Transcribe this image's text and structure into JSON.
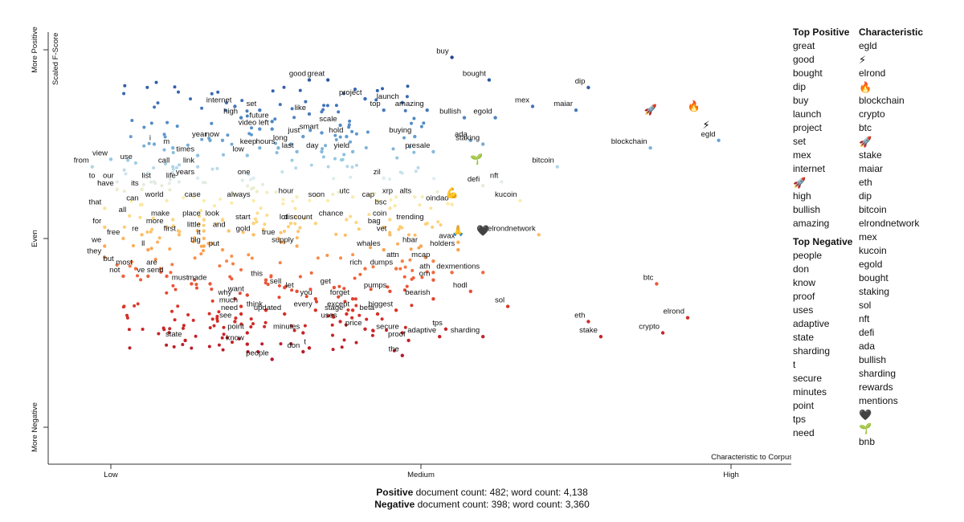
{
  "chart_data": {
    "type": "scatter",
    "xlabel": "Characteristic to Corpus",
    "ylabel": "Scaled F-Score",
    "x_ticks": [
      "Low",
      "Medium",
      "High"
    ],
    "y_ticks": [
      "More Negative",
      "Even",
      "More Positive"
    ],
    "xlim": [
      0,
      1
    ],
    "ylim": [
      0,
      1
    ],
    "grid": false,
    "labeled_points": [
      {
        "label": "buy",
        "x": 0.55,
        "y": 0.98
      },
      {
        "label": "good",
        "x": 0.32,
        "y": 0.92
      },
      {
        "label": "great",
        "x": 0.35,
        "y": 0.92
      },
      {
        "label": "bought",
        "x": 0.61,
        "y": 0.92
      },
      {
        "label": "project",
        "x": 0.41,
        "y": 0.87
      },
      {
        "label": "launch",
        "x": 0.47,
        "y": 0.86
      },
      {
        "label": "dip",
        "x": 0.77,
        "y": 0.9
      },
      {
        "label": "internet",
        "x": 0.2,
        "y": 0.85
      },
      {
        "label": "set",
        "x": 0.24,
        "y": 0.84
      },
      {
        "label": "high",
        "x": 0.21,
        "y": 0.82
      },
      {
        "label": "future",
        "x": 0.26,
        "y": 0.81
      },
      {
        "label": "like",
        "x": 0.32,
        "y": 0.83
      },
      {
        "label": "top",
        "x": 0.44,
        "y": 0.84
      },
      {
        "label": "amazing",
        "x": 0.51,
        "y": 0.84
      },
      {
        "label": "bullish",
        "x": 0.57,
        "y": 0.82
      },
      {
        "label": "egold",
        "x": 0.62,
        "y": 0.82
      },
      {
        "label": "mex",
        "x": 0.68,
        "y": 0.85
      },
      {
        "label": "maiar",
        "x": 0.75,
        "y": 0.84
      },
      {
        "label": "video",
        "x": 0.24,
        "y": 0.79
      },
      {
        "label": "left",
        "x": 0.26,
        "y": 0.79
      },
      {
        "label": "scale",
        "x": 0.37,
        "y": 0.8
      },
      {
        "label": "year",
        "x": 0.16,
        "y": 0.76
      },
      {
        "label": "now",
        "x": 0.18,
        "y": 0.76
      },
      {
        "label": "just",
        "x": 0.31,
        "y": 0.77
      },
      {
        "label": "smart",
        "x": 0.34,
        "y": 0.78
      },
      {
        "label": "hold",
        "x": 0.38,
        "y": 0.77
      },
      {
        "label": "buying",
        "x": 0.49,
        "y": 0.77
      },
      {
        "label": "ada",
        "x": 0.58,
        "y": 0.76
      },
      {
        "label": "staking",
        "x": 0.6,
        "y": 0.75
      },
      {
        "label": "egld",
        "x": 0.98,
        "y": 0.76
      },
      {
        "label": "blockchain",
        "x": 0.87,
        "y": 0.74
      },
      {
        "label": "i",
        "x": 0.07,
        "y": 0.75
      },
      {
        "label": "m",
        "x": 0.1,
        "y": 0.74
      },
      {
        "label": "keep",
        "x": 0.24,
        "y": 0.74
      },
      {
        "label": "hours",
        "x": 0.27,
        "y": 0.74
      },
      {
        "label": "long",
        "x": 0.29,
        "y": 0.75
      },
      {
        "label": "last",
        "x": 0.3,
        "y": 0.73
      },
      {
        "label": "day",
        "x": 0.34,
        "y": 0.73
      },
      {
        "label": "yield",
        "x": 0.39,
        "y": 0.73
      },
      {
        "label": "presale",
        "x": 0.52,
        "y": 0.73
      },
      {
        "label": "view",
        "x": 0.0,
        "y": 0.71
      },
      {
        "label": "times",
        "x": 0.14,
        "y": 0.72
      },
      {
        "label": "low",
        "x": 0.22,
        "y": 0.72
      },
      {
        "label": "from",
        "x": -0.03,
        "y": 0.69
      },
      {
        "label": "use",
        "x": 0.04,
        "y": 0.7
      },
      {
        "label": "call",
        "x": 0.1,
        "y": 0.69
      },
      {
        "label": "link",
        "x": 0.14,
        "y": 0.69
      },
      {
        "label": "bitcoin",
        "x": 0.72,
        "y": 0.69
      },
      {
        "label": "to",
        "x": -0.02,
        "y": 0.65
      },
      {
        "label": "our",
        "x": 0.01,
        "y": 0.65
      },
      {
        "label": "have",
        "x": 0.01,
        "y": 0.63
      },
      {
        "label": "its",
        "x": 0.05,
        "y": 0.63
      },
      {
        "label": "list",
        "x": 0.07,
        "y": 0.65
      },
      {
        "label": "life",
        "x": 0.11,
        "y": 0.65
      },
      {
        "label": "years",
        "x": 0.14,
        "y": 0.66
      },
      {
        "label": "one",
        "x": 0.23,
        "y": 0.66
      },
      {
        "label": "zil",
        "x": 0.44,
        "y": 0.66
      },
      {
        "label": "defi",
        "x": 0.6,
        "y": 0.64
      },
      {
        "label": "nft",
        "x": 0.63,
        "y": 0.65
      },
      {
        "label": "world",
        "x": 0.09,
        "y": 0.6
      },
      {
        "label": "case",
        "x": 0.15,
        "y": 0.6
      },
      {
        "label": "always",
        "x": 0.23,
        "y": 0.6
      },
      {
        "label": "hour",
        "x": 0.3,
        "y": 0.61
      },
      {
        "label": "soon",
        "x": 0.35,
        "y": 0.6
      },
      {
        "label": "utc",
        "x": 0.39,
        "y": 0.61
      },
      {
        "label": "cap",
        "x": 0.43,
        "y": 0.6
      },
      {
        "label": "xrp",
        "x": 0.46,
        "y": 0.61
      },
      {
        "label": "alts",
        "x": 0.49,
        "y": 0.61
      },
      {
        "label": "oindao",
        "x": 0.55,
        "y": 0.59
      },
      {
        "label": "kucoin",
        "x": 0.66,
        "y": 0.6
      },
      {
        "label": "that",
        "x": -0.01,
        "y": 0.58
      },
      {
        "label": "can",
        "x": 0.05,
        "y": 0.59
      },
      {
        "label": "bsc",
        "x": 0.45,
        "y": 0.58
      },
      {
        "label": "all",
        "x": 0.03,
        "y": 0.56
      },
      {
        "label": "make",
        "x": 0.1,
        "y": 0.55
      },
      {
        "label": "place",
        "x": 0.15,
        "y": 0.55
      },
      {
        "label": "look",
        "x": 0.18,
        "y": 0.55
      },
      {
        "label": "start",
        "x": 0.23,
        "y": 0.54
      },
      {
        "label": "lot",
        "x": 0.29,
        "y": 0.54
      },
      {
        "label": "discount",
        "x": 0.33,
        "y": 0.54
      },
      {
        "label": "chance",
        "x": 0.38,
        "y": 0.55
      },
      {
        "label": "coin",
        "x": 0.45,
        "y": 0.55
      },
      {
        "label": "trending",
        "x": 0.51,
        "y": 0.54
      },
      {
        "label": "for",
        "x": -0.01,
        "y": 0.53
      },
      {
        "label": "more",
        "x": 0.09,
        "y": 0.53
      },
      {
        "label": "little",
        "x": 0.15,
        "y": 0.52
      },
      {
        "label": "and",
        "x": 0.19,
        "y": 0.52
      },
      {
        "label": "bag",
        "x": 0.44,
        "y": 0.53
      },
      {
        "label": "elrondnetwork",
        "x": 0.69,
        "y": 0.51
      },
      {
        "label": "re",
        "x": 0.05,
        "y": 0.51
      },
      {
        "label": "first",
        "x": 0.11,
        "y": 0.51
      },
      {
        "label": "it",
        "x": 0.15,
        "y": 0.5
      },
      {
        "label": "gold",
        "x": 0.23,
        "y": 0.51
      },
      {
        "label": "true",
        "x": 0.27,
        "y": 0.5
      },
      {
        "label": "vet",
        "x": 0.45,
        "y": 0.51
      },
      {
        "label": "free",
        "x": 0.02,
        "y": 0.5
      },
      {
        "label": "avax",
        "x": 0.56,
        "y": 0.49
      },
      {
        "label": "we",
        "x": -0.01,
        "y": 0.48
      },
      {
        "label": "ll",
        "x": 0.06,
        "y": 0.47
      },
      {
        "label": "big",
        "x": 0.15,
        "y": 0.48
      },
      {
        "label": "put",
        "x": 0.18,
        "y": 0.47
      },
      {
        "label": "supply",
        "x": 0.3,
        "y": 0.48
      },
      {
        "label": "whales",
        "x": 0.44,
        "y": 0.47
      },
      {
        "label": "hbar",
        "x": 0.5,
        "y": 0.48
      },
      {
        "label": "holders",
        "x": 0.56,
        "y": 0.47
      },
      {
        "label": "they",
        "x": -0.01,
        "y": 0.45
      },
      {
        "label": "attn",
        "x": 0.47,
        "y": 0.44
      },
      {
        "label": "mcap",
        "x": 0.52,
        "y": 0.44
      },
      {
        "label": "but",
        "x": 0.01,
        "y": 0.43
      },
      {
        "label": "most",
        "x": 0.04,
        "y": 0.42
      },
      {
        "label": "are",
        "x": 0.08,
        "y": 0.42
      },
      {
        "label": "rich",
        "x": 0.41,
        "y": 0.42
      },
      {
        "label": "dumps",
        "x": 0.46,
        "y": 0.42
      },
      {
        "label": "ath",
        "x": 0.52,
        "y": 0.41
      },
      {
        "label": "dex",
        "x": 0.55,
        "y": 0.41
      },
      {
        "label": "mentions",
        "x": 0.6,
        "y": 0.41
      },
      {
        "label": "not",
        "x": 0.02,
        "y": 0.4
      },
      {
        "label": "ve",
        "x": 0.06,
        "y": 0.4
      },
      {
        "label": "send",
        "x": 0.09,
        "y": 0.4
      },
      {
        "label": "must",
        "x": 0.13,
        "y": 0.38
      },
      {
        "label": "made",
        "x": 0.16,
        "y": 0.38
      },
      {
        "label": "this",
        "x": 0.25,
        "y": 0.39
      },
      {
        "label": "orn",
        "x": 0.52,
        "y": 0.39
      },
      {
        "label": "sell",
        "x": 0.28,
        "y": 0.37
      },
      {
        "label": "let",
        "x": 0.3,
        "y": 0.36
      },
      {
        "label": "get",
        "x": 0.36,
        "y": 0.37
      },
      {
        "label": "pumps",
        "x": 0.45,
        "y": 0.36
      },
      {
        "label": "hodl",
        "x": 0.58,
        "y": 0.36
      },
      {
        "label": "btc",
        "x": 0.88,
        "y": 0.38
      },
      {
        "label": "want",
        "x": 0.22,
        "y": 0.35
      },
      {
        "label": "why",
        "x": 0.2,
        "y": 0.34
      },
      {
        "label": "you",
        "x": 0.33,
        "y": 0.34
      },
      {
        "label": "forget",
        "x": 0.39,
        "y": 0.34
      },
      {
        "label": "bearish",
        "x": 0.52,
        "y": 0.34
      },
      {
        "label": "much",
        "x": 0.21,
        "y": 0.32
      },
      {
        "label": "sol",
        "x": 0.64,
        "y": 0.32
      },
      {
        "label": "every",
        "x": 0.33,
        "y": 0.31
      },
      {
        "label": "except",
        "x": 0.39,
        "y": 0.31
      },
      {
        "label": "biggest",
        "x": 0.46,
        "y": 0.31
      },
      {
        "label": "need",
        "x": 0.21,
        "y": 0.3
      },
      {
        "label": "think",
        "x": 0.25,
        "y": 0.31
      },
      {
        "label": "updated",
        "x": 0.28,
        "y": 0.3
      },
      {
        "label": "stage",
        "x": 0.38,
        "y": 0.3
      },
      {
        "label": "beta",
        "x": 0.43,
        "y": 0.3
      },
      {
        "label": "elrond",
        "x": 0.93,
        "y": 0.29
      },
      {
        "label": "see",
        "x": 0.2,
        "y": 0.28
      },
      {
        "label": "uses",
        "x": 0.37,
        "y": 0.28
      },
      {
        "label": "eth",
        "x": 0.77,
        "y": 0.28
      },
      {
        "label": "price",
        "x": 0.41,
        "y": 0.26
      },
      {
        "label": "point",
        "x": 0.22,
        "y": 0.25
      },
      {
        "label": "minutes",
        "x": 0.31,
        "y": 0.25
      },
      {
        "label": "secure",
        "x": 0.47,
        "y": 0.25
      },
      {
        "label": "tps",
        "x": 0.54,
        "y": 0.26
      },
      {
        "label": "state",
        "x": 0.12,
        "y": 0.23
      },
      {
        "label": "adaptive",
        "x": 0.53,
        "y": 0.24
      },
      {
        "label": "sharding",
        "x": 0.6,
        "y": 0.24
      },
      {
        "label": "stake",
        "x": 0.79,
        "y": 0.24
      },
      {
        "label": "crypto",
        "x": 0.89,
        "y": 0.25
      },
      {
        "label": "proof",
        "x": 0.48,
        "y": 0.23
      },
      {
        "label": "know",
        "x": 0.22,
        "y": 0.22
      },
      {
        "label": "t",
        "x": 0.32,
        "y": 0.21
      },
      {
        "label": "don",
        "x": 0.31,
        "y": 0.2
      },
      {
        "label": "the",
        "x": 0.47,
        "y": 0.19
      },
      {
        "label": "people",
        "x": 0.26,
        "y": 0.18
      }
    ],
    "emoji_points": [
      {
        "icon": "rocket-icon",
        "glyph": "🚀",
        "x": 0.87,
        "y": 0.84
      },
      {
        "icon": "fire-icon",
        "glyph": "🔥",
        "x": 0.94,
        "y": 0.85
      },
      {
        "icon": "lightning-icon",
        "glyph": "⚡",
        "x": 0.96,
        "y": 0.8
      },
      {
        "icon": "seedling-icon",
        "glyph": "🌱",
        "x": 0.59,
        "y": 0.71
      },
      {
        "icon": "flexed-biceps-icon",
        "glyph": "💪",
        "x": 0.55,
        "y": 0.62
      },
      {
        "icon": "person-lotus-icon",
        "glyph": "🙏",
        "x": 0.56,
        "y": 0.52
      },
      {
        "icon": "black-heart-icon",
        "glyph": "🖤",
        "x": 0.6,
        "y": 0.52
      }
    ]
  },
  "top_positive": {
    "heading": "Top Positive",
    "items": [
      "great",
      "good",
      "bought",
      "dip",
      "buy",
      "launch",
      "project",
      "set",
      "mex",
      "internet",
      "🚀",
      "high",
      "bullish",
      "amazing"
    ]
  },
  "top_negative": {
    "heading": "Top Negative",
    "items": [
      "people",
      "don",
      "know",
      "proof",
      "uses",
      "adaptive",
      "state",
      "sharding",
      "t",
      "secure",
      "minutes",
      "point",
      "tps",
      "need"
    ]
  },
  "characteristic": {
    "heading": "Characteristic",
    "items": [
      "egld",
      "⚡",
      "elrond",
      "🔥",
      "blockchain",
      "crypto",
      "btc",
      "🚀",
      "stake",
      "maiar",
      "eth",
      "dip",
      "bitcoin",
      "elrondnetwork",
      "mex",
      "kucoin",
      "egold",
      "bought",
      "staking",
      "sol",
      "nft",
      "defi",
      "ada",
      "bullish",
      "sharding",
      "rewards",
      "mentions",
      "🖤",
      "🌱",
      "bnb"
    ]
  },
  "footer": {
    "positive_label": "Positive",
    "positive_text": " document count: 482; word count: 4,138",
    "negative_label": "Negative",
    "negative_text": " document count: 398; word count: 3,360"
  }
}
